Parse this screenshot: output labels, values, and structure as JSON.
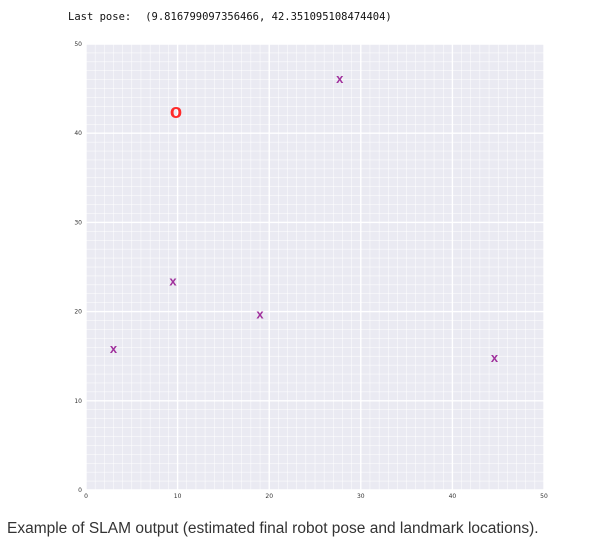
{
  "output": {
    "pose_label": "Last pose:",
    "pose_value": "(9.816799097356466, 42.351095108474404)"
  },
  "caption": "Example of SLAM output (estimated final robot pose and landmark locations).",
  "chart_data": {
    "type": "scatter",
    "title": "",
    "xlabel": "",
    "ylabel": "",
    "xlim": [
      0,
      50
    ],
    "ylim": [
      0,
      50
    ],
    "x_ticks": [
      "0",
      "10",
      "20",
      "30",
      "40",
      "50"
    ],
    "y_ticks": [
      "0",
      "10",
      "20",
      "30",
      "40",
      "50"
    ],
    "grid": true,
    "grid_minor": true,
    "background_color": "#eaeaf2",
    "grid_color": "#ffffff",
    "series": [
      {
        "marker": "o",
        "marker_text": "o",
        "color": "#ff2a2a",
        "points": [
          {
            "x": 9.82,
            "y": 42.35
          }
        ]
      },
      {
        "marker": "x",
        "marker_text": "x",
        "color": "#a0309c",
        "points": [
          {
            "x": 27.7,
            "y": 46.1
          },
          {
            "x": 9.5,
            "y": 23.4
          },
          {
            "x": 19.0,
            "y": 19.7
          },
          {
            "x": 3.0,
            "y": 15.8
          },
          {
            "x": 44.6,
            "y": 14.8
          }
        ]
      }
    ]
  }
}
